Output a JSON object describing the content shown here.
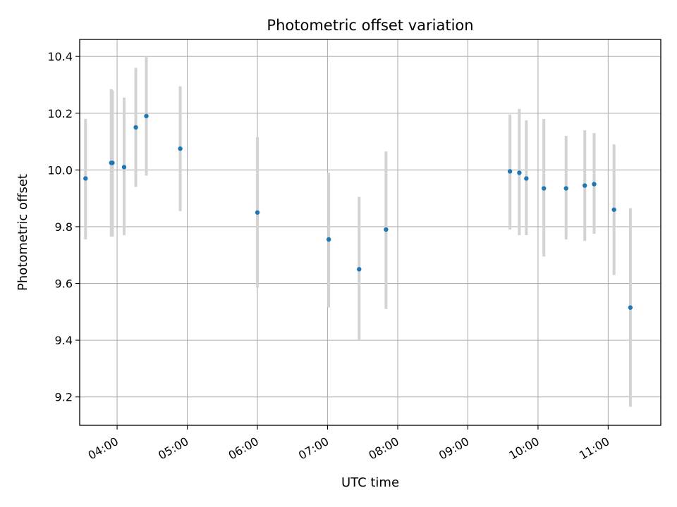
{
  "chart_data": {
    "type": "scatter",
    "title": "Photometric offset variation",
    "xlabel": "UTC time",
    "ylabel": "Photometric offset",
    "xlim": [
      "03:28",
      "11:45"
    ],
    "ylim": [
      9.1,
      10.46
    ],
    "x_ticks": [
      "04:00",
      "05:00",
      "06:00",
      "07:00",
      "08:00",
      "09:00",
      "10:00",
      "11:00"
    ],
    "y_ticks": [
      9.2,
      9.4,
      9.6,
      9.8,
      10.0,
      10.2,
      10.4
    ],
    "y_tick_labels": [
      "9.2",
      "9.4",
      "9.6",
      "9.8",
      "10.0",
      "10.2",
      "10.4"
    ],
    "grid": true,
    "colors": {
      "points": "#1f77b4",
      "errorbars": "#d3d3d3",
      "grid": "#b0b0b0"
    },
    "series": [
      {
        "points": [
          {
            "x": "03:33",
            "y": 9.97,
            "err_low": 9.755,
            "err_high": 10.18
          },
          {
            "x": "03:55",
            "y": 10.025,
            "err_low": 9.765,
            "err_high": 10.285
          },
          {
            "x": "03:56",
            "y": 10.025,
            "err_low": 9.765,
            "err_high": 10.28
          },
          {
            "x": "04:06",
            "y": 10.01,
            "err_low": 9.77,
            "err_high": 10.255
          },
          {
            "x": "04:16",
            "y": 10.15,
            "err_low": 9.94,
            "err_high": 10.36
          },
          {
            "x": "04:25",
            "y": 10.19,
            "err_low": 9.98,
            "err_high": 10.4
          },
          {
            "x": "04:54",
            "y": 10.075,
            "err_low": 9.855,
            "err_high": 10.295
          },
          {
            "x": "06:00",
            "y": 9.85,
            "err_low": 9.585,
            "err_high": 10.115
          },
          {
            "x": "07:01",
            "y": 9.755,
            "err_low": 9.515,
            "err_high": 9.99
          },
          {
            "x": "07:27",
            "y": 9.65,
            "err_low": 9.4,
            "err_high": 9.905
          },
          {
            "x": "07:50",
            "y": 9.79,
            "err_low": 9.51,
            "err_high": 10.065
          },
          {
            "x": "09:36",
            "y": 9.995,
            "err_low": 9.79,
            "err_high": 10.195
          },
          {
            "x": "09:44",
            "y": 9.99,
            "err_low": 9.77,
            "err_high": 10.215
          },
          {
            "x": "09:50",
            "y": 9.97,
            "err_low": 9.77,
            "err_high": 10.175
          },
          {
            "x": "10:05",
            "y": 9.935,
            "err_low": 9.695,
            "err_high": 10.18
          },
          {
            "x": "10:24",
            "y": 9.935,
            "err_low": 9.755,
            "err_high": 10.12
          },
          {
            "x": "10:40",
            "y": 9.945,
            "err_low": 9.75,
            "err_high": 10.14
          },
          {
            "x": "10:48",
            "y": 9.95,
            "err_low": 9.775,
            "err_high": 10.13
          },
          {
            "x": "11:05",
            "y": 9.86,
            "err_low": 9.63,
            "err_high": 10.09
          },
          {
            "x": "11:19",
            "y": 9.515,
            "err_low": 9.165,
            "err_high": 9.865
          }
        ]
      }
    ]
  }
}
